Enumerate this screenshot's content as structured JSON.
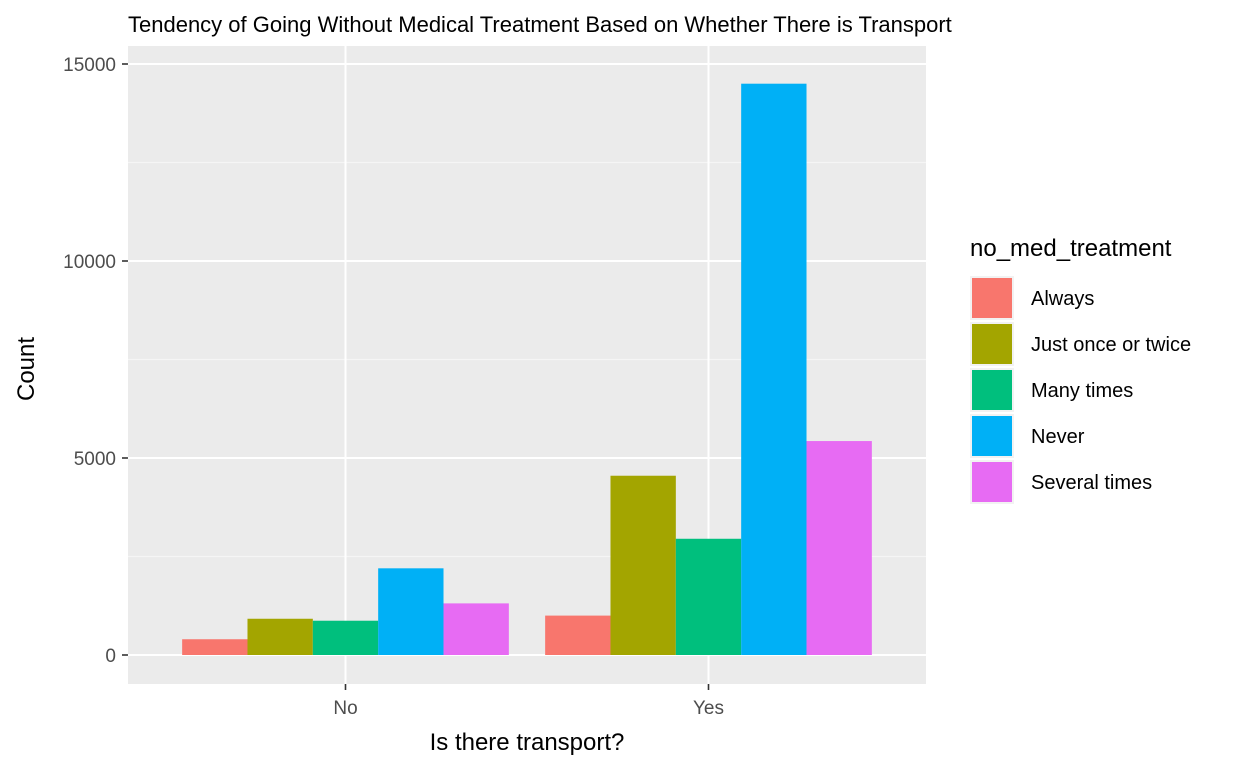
{
  "chart_data": {
    "type": "bar",
    "title": "Tendency of Going Without Medical Treatment Based on Whether There is Transport",
    "xlabel": "Is there transport?",
    "ylabel": "Count",
    "categories": [
      "No",
      "Yes"
    ],
    "ylim": [
      0,
      15000
    ],
    "yticks": [
      0,
      5000,
      10000,
      15000
    ],
    "yticks_labels": [
      "0",
      "5000",
      "10000",
      "15000"
    ],
    "grid": true,
    "legend": {
      "title": "no_med_treatment",
      "position": "right"
    },
    "series": [
      {
        "name": "Always",
        "color": "#F8766D",
        "values": [
          400,
          1000
        ]
      },
      {
        "name": "Just once or twice",
        "color": "#A3A500",
        "values": [
          920,
          4550
        ]
      },
      {
        "name": "Many times",
        "color": "#00BF7D",
        "values": [
          870,
          2950
        ]
      },
      {
        "name": "Never",
        "color": "#00B0F6",
        "values": [
          2200,
          14500
        ]
      },
      {
        "name": "Several times",
        "color": "#E76BF3",
        "values": [
          1310,
          5430
        ]
      }
    ],
    "colors": {
      "panel_background": "#EBEBEB",
      "grid_major": "#FFFFFF",
      "grid_minor": "#F5F5F5"
    }
  }
}
